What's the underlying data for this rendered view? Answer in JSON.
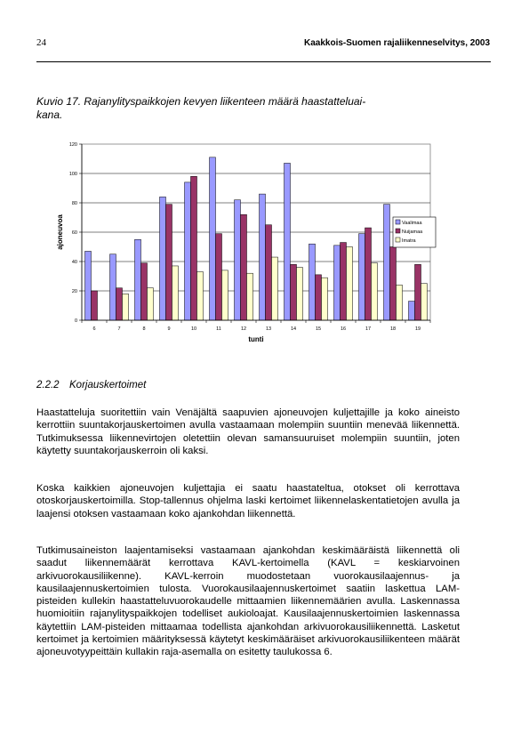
{
  "header": {
    "page_number": "24",
    "running_title": "Kaakkois-Suomen rajaliikenneselvitys, 2003"
  },
  "figure": {
    "caption": "Kuvio 17. Rajanylityspaikkojen kevyen liikenteen määrä haastatteluai-kana."
  },
  "chart_data": {
    "type": "bar",
    "categories": [
      "6",
      "7",
      "8",
      "9",
      "10",
      "11",
      "12",
      "13",
      "14",
      "15",
      "16",
      "17",
      "18",
      "19"
    ],
    "series": [
      {
        "name": "Vaalimaa",
        "color": "#9999ff",
        "values": [
          47,
          45,
          55,
          84,
          94,
          111,
          82,
          86,
          107,
          52,
          51,
          59,
          79,
          13
        ]
      },
      {
        "name": "Nuijamaa",
        "color": "#993366",
        "values": [
          20,
          22,
          39,
          79,
          98,
          59,
          72,
          65,
          38,
          31,
          53,
          63,
          50,
          38
        ]
      },
      {
        "name": "Imatra",
        "color": "#ffffcc",
        "values": [
          null,
          18,
          22,
          37,
          33,
          34,
          32,
          43,
          36,
          29,
          50,
          39,
          24,
          25
        ]
      }
    ],
    "xlabel": "tunti",
    "ylabel": "ajoneuvoa",
    "ylim": [
      0,
      120
    ],
    "yticks": [
      0,
      20,
      40,
      60,
      80,
      100,
      120
    ],
    "grid": true,
    "legend": "right"
  },
  "section": {
    "number": "2.2.2",
    "title": "Korjauskertoimet"
  },
  "paragraphs": [
    "Haastatteluja suoritettiin vain Venäjältä saapuvien ajoneuvojen kuljettajille ja koko aineisto kerrottiin suuntakorjauskertoimen avulla vastaamaan molempiin suuntiin menevää liikennettä. Tutkimuksessa liikennevirtojen oletettiin olevan samansuuruiset molempiin suuntiin, joten käytetty suuntakorjauskerroin oli kaksi.",
    "Koska kaikkien ajoneuvojen kuljettajia ei saatu haastateltua, otokset oli kerrottava otoskorjauskertoimilla. Stop-tallennus ohjelma laski kertoimet liikennelaskentatietojen avulla ja laajensi otoksen vastaamaan koko ajankohdan liikennettä.",
    "Tutkimusaineiston laajentamiseksi vastaamaan ajankohdan keskimääräistä liikennettä oli saadut liikennemäärät kerrottava KAVL-kertoimella (KAVL = keskiarvoinen arkivuorokausiliikenne). KAVL-kerroin muodostetaan vuorokausilaajennus- ja kausilaajennuskertoimien tulosta. Vuorokausilaajennuskertoimet saatiin laskettua LAM-pisteiden kullekin haastatteluvuorokaudelle mittaamien liikennemäärien avulla. Laskennassa huomioitiin rajanylityspaikkojen todelliset aukioloajat. Kausilaajennuskertoimien laskennassa käytettiin LAM-pisteiden mittaamaa todellista ajankohdan arkivuorokausiliikennettä. Lasketut kertoimet ja kertoimien määrityksessä käytetyt keskimääräiset arkivuorokausiliikenteen määrät ajoneuvotyypeittäin kullakin raja-asemalla on esitetty taulukossa 6."
  ]
}
